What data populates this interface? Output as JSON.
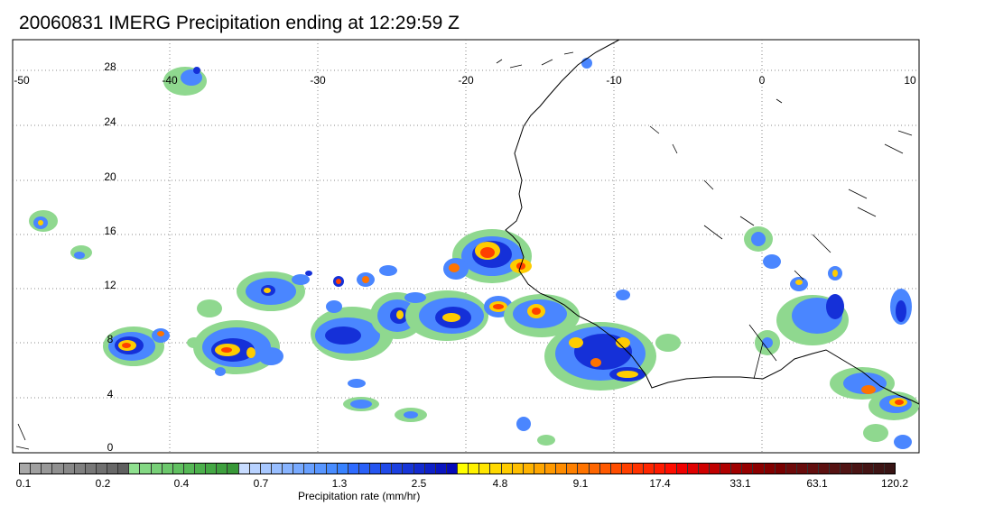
{
  "title": "20060831 IMERG Precipitation ending at 12:29:59 Z",
  "map": {
    "lon_range": [
      -50,
      10
    ],
    "lat_range": [
      -1,
      31
    ],
    "lon_ticks": [
      "-50",
      "-40",
      "-30",
      "-20",
      "-10",
      "0",
      "10"
    ],
    "lat_ticks": [
      "28",
      "24",
      "20",
      "16",
      "12",
      "8",
      "4",
      "0"
    ],
    "grid": "dotted",
    "background": "#ffffff",
    "coastline_color": "#000000"
  },
  "colorbar": {
    "units": "Precipitation rate (mm/hr)",
    "labels": [
      "0.1",
      "0.2",
      "0.4",
      "0.7",
      "1.3",
      "2.5",
      "4.8",
      "9.1",
      "17.4",
      "33.1",
      "63.1",
      "120.2"
    ],
    "colors": [
      "#a8a8a8",
      "#a0a0a0",
      "#989898",
      "#909090",
      "#888888",
      "#808080",
      "#787878",
      "#707070",
      "#686868",
      "#606060",
      "#8fe08f",
      "#84d884",
      "#78d078",
      "#6cc86c",
      "#60c060",
      "#56b856",
      "#4cb04c",
      "#44a844",
      "#3ea03e",
      "#389838",
      "#c8dcff",
      "#b8d2ff",
      "#a8c8ff",
      "#98beff",
      "#88b4ff",
      "#78aaff",
      "#68a0ff",
      "#5896ff",
      "#488cff",
      "#3882ff",
      "#2f6bff",
      "#2a60f8",
      "#2555f0",
      "#204ae8",
      "#1b40e0",
      "#1635d8",
      "#122ad0",
      "#0e20c8",
      "#0a15c0",
      "#060ab8",
      "#ffff00",
      "#fff200",
      "#ffe600",
      "#ffd900",
      "#ffcc00",
      "#ffbf00",
      "#ffb300",
      "#ffa600",
      "#ff9900",
      "#ff8c00",
      "#ff8000",
      "#ff7300",
      "#ff6600",
      "#ff5900",
      "#ff4d00",
      "#ff4000",
      "#ff3300",
      "#ff2600",
      "#ff1a00",
      "#ff0d00",
      "#f00000",
      "#e00000",
      "#d00000",
      "#c00000",
      "#b00000",
      "#a00000",
      "#960000",
      "#8c0000",
      "#820000",
      "#780000",
      "#6e0a0a",
      "#680c0c",
      "#620e0e",
      "#5c1010",
      "#561212",
      "#501414",
      "#4a1414",
      "#441414",
      "#3e1414",
      "#381414"
    ]
  }
}
